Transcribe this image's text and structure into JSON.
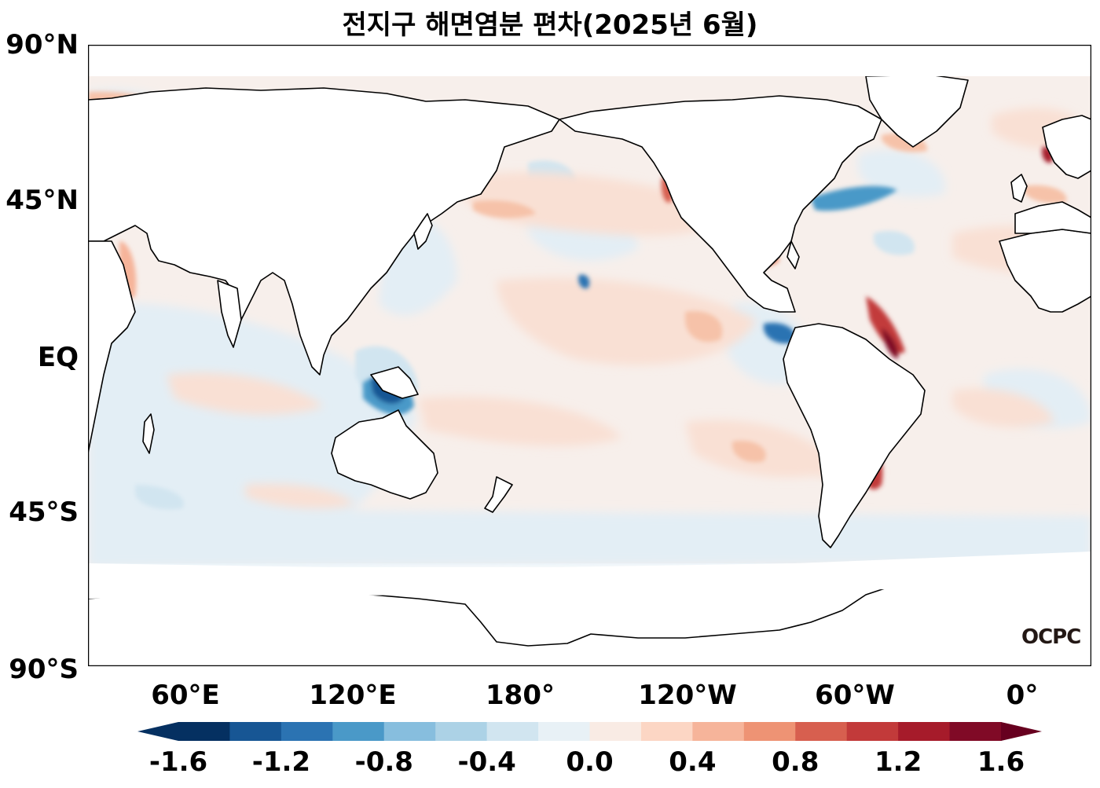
{
  "title": "전지구 해면염분 편차(2025년 6월)",
  "logo": "OCPC",
  "lat_labels": [
    "90°N",
    "45°N",
    "EQ",
    "45°S",
    "90°S"
  ],
  "lon_labels": [
    "60°E",
    "120°E",
    "180°",
    "120°W",
    "60°W",
    "0°"
  ],
  "colorbar": {
    "ticks": [
      "-1.6",
      "-1.2",
      "-0.8",
      "-0.4",
      "0.0",
      "0.4",
      "0.8",
      "1.2",
      "1.6"
    ],
    "colors": [
      "#053061",
      "#175694",
      "#2b73b2",
      "#4a99c8",
      "#87bede",
      "#acd2e6",
      "#d1e5f0",
      "#e8f1f6",
      "#f9ebe4",
      "#fcd6c4",
      "#f6b49a",
      "#ee9374",
      "#d75f4f",
      "#c23a3a",
      "#a61b2a",
      "#800a26"
    ],
    "under_color": "#053061",
    "over_color": "#67001f"
  },
  "colors": {
    "ocean_base": "#f6f0ee",
    "land": "#ffffff",
    "coastline": "#000000"
  }
}
